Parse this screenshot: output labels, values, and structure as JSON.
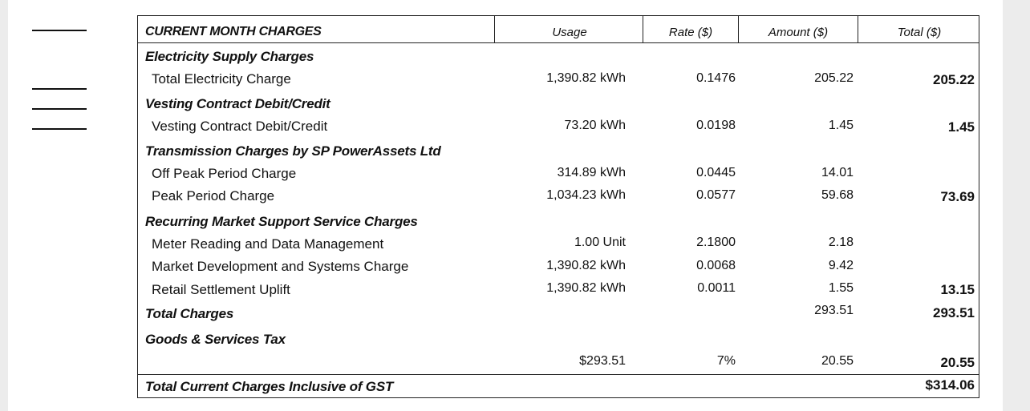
{
  "header": {
    "title": "CURRENT MONTH CHARGES",
    "usage": "Usage",
    "rate": "Rate ($)",
    "amount": "Amount ($)",
    "total": "Total ($)"
  },
  "sections": {
    "electricity": {
      "title": "Electricity Supply Charges",
      "row": {
        "label": "Total Electricity Charge",
        "usage": "1,390.82 kWh",
        "rate": "0.1476",
        "amount": "205.22",
        "total": "205.22"
      }
    },
    "vesting": {
      "title": "Vesting Contract Debit/Credit",
      "row": {
        "label": "Vesting Contract Debit/Credit",
        "usage": "73.20 kWh",
        "rate": "0.0198",
        "amount": "1.45",
        "total": "1.45"
      }
    },
    "transmission": {
      "title": "Transmission Charges by SP PowerAssets Ltd",
      "rows": [
        {
          "label": "Off Peak Period Charge",
          "usage": "314.89 kWh",
          "rate": "0.0445",
          "amount": "14.01",
          "total": ""
        },
        {
          "label": "Peak Period Charge",
          "usage": "1,034.23 kWh",
          "rate": "0.0577",
          "amount": "59.68",
          "total": "73.69"
        }
      ]
    },
    "market": {
      "title": "Recurring Market Support Service Charges",
      "rows": [
        {
          "label": "Meter Reading and Data Management",
          "usage": "1.00 Unit",
          "rate": "2.1800",
          "amount": "2.18",
          "total": ""
        },
        {
          "label": "Market Development and Systems Charge",
          "usage": "1,390.82 kWh",
          "rate": "0.0068",
          "amount": "9.42",
          "total": ""
        },
        {
          "label": "Retail Settlement Uplift",
          "usage": "1,390.82 kWh",
          "rate": "0.0011",
          "amount": "1.55",
          "total": "13.15"
        }
      ]
    }
  },
  "total_charges": {
    "label": "Total Charges",
    "amount": "293.51",
    "total": "293.51"
  },
  "gst": {
    "label": "Goods & Services Tax",
    "usage": "$293.51",
    "rate": "7%",
    "amount": "20.55",
    "total": "20.55"
  },
  "grand_total": {
    "label": "Total Current Charges Inclusive of GST",
    "total": "$314.06"
  }
}
